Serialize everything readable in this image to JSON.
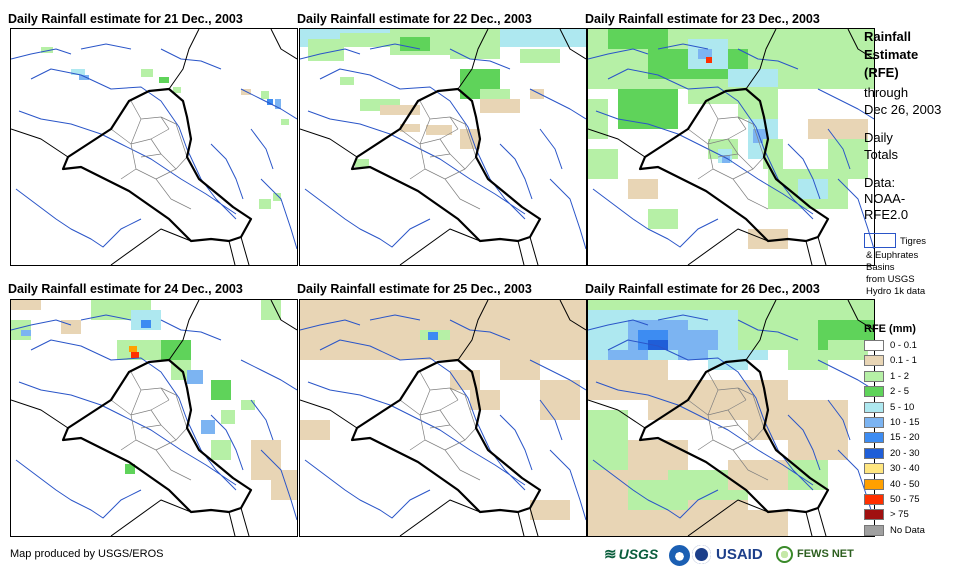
{
  "panels": [
    {
      "title": "Daily Rainfall estimate for 21 Dec., 2003"
    },
    {
      "title": "Daily Rainfall estimate for 22 Dec., 2003"
    },
    {
      "title": "Daily Rainfall estimate for 23 Dec., 2003"
    },
    {
      "title": "Daily Rainfall estimate for 24 Dec., 2003"
    },
    {
      "title": "Daily Rainfall estimate for 25 Dec., 2003"
    },
    {
      "title": "Daily Rainfall estimate for 26 Dec., 2003"
    }
  ],
  "sidebar": {
    "title_line1": "Rainfall",
    "title_line2": "Estimate",
    "title_line3": "(RFE)",
    "through": "through",
    "through_date": "Dec 26, 2003",
    "daily_line1": "Daily",
    "daily_line2": "Totals",
    "data_line1": "Data:",
    "data_line2": "NOAA-",
    "data_line3": "RFE2.0",
    "basins_line1": "Tigres",
    "basins_line2": "& Euphrates",
    "basins_line3": "Basins",
    "basins_line4": "from USGS",
    "basins_line5": "Hydro 1k data"
  },
  "legend": {
    "title": "RFE (mm)",
    "items": [
      {
        "label": "0 - 0.1",
        "color": "#ffffff"
      },
      {
        "label": "0.1 - 1",
        "color": "#e8d5b5"
      },
      {
        "label": "1 - 2",
        "color": "#b6f0a6"
      },
      {
        "label": "2 - 5",
        "color": "#5fd35a"
      },
      {
        "label": "5 - 10",
        "color": "#aee8f0"
      },
      {
        "label": "10 - 15",
        "color": "#7cb4f2"
      },
      {
        "label": "15 - 20",
        "color": "#3d8cf2"
      },
      {
        "label": "20 - 30",
        "color": "#1f5ed8"
      },
      {
        "label": "30 - 40",
        "color": "#ffe680"
      },
      {
        "label": "40 - 50",
        "color": "#ffa000"
      },
      {
        "label": "50 - 75",
        "color": "#ff3000"
      },
      {
        "label": "> 75",
        "color": "#a01010"
      },
      {
        "label": "No Data",
        "color": "#a0a0a0"
      }
    ]
  },
  "footer": {
    "credit": "Map produced by USGS/EROS"
  },
  "logos": {
    "usgs": "USGS",
    "usaid": "USAID",
    "fews": "FEWS NET"
  },
  "colors": {
    "river": "#2a55c8",
    "border": "#000000",
    "province": "#808080"
  }
}
